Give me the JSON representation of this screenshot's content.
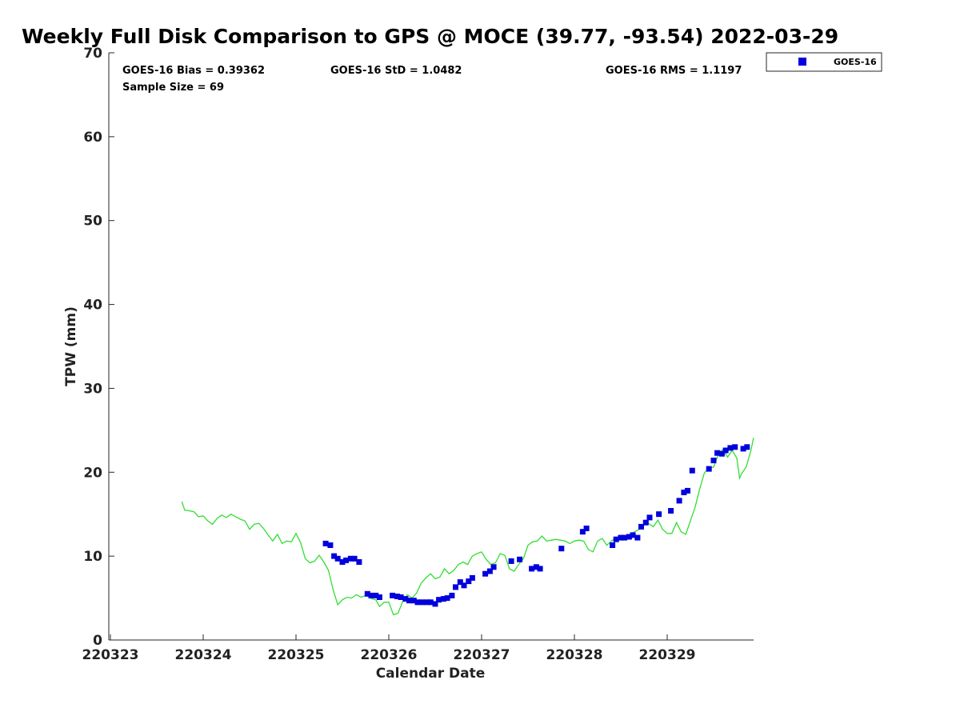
{
  "chart_data": {
    "type": "scatter",
    "title": "Weekly Full Disk Comparison to GPS @ MOCE (39.77, -93.54) 2022-03-29",
    "xlabel": "Calendar Date",
    "ylabel": "TPW (mm)",
    "xlim": [
      0,
      7
    ],
    "ylim": [
      0,
      70
    ],
    "x_tick_labels": [
      "220323",
      "220324",
      "220325",
      "220326",
      "220327",
      "220328",
      "220329"
    ],
    "y_ticks": [
      0,
      10,
      20,
      30,
      40,
      50,
      60,
      70
    ],
    "stats": {
      "bias": "GOES-16 Bias = 0.39362",
      "std": "GOES-16 StD = 1.0482",
      "rms": "GOES-16 RMS = 1.1197",
      "sample": "Sample Size = 69"
    },
    "legend": {
      "position": "top-right",
      "entries": [
        "GOES-16"
      ]
    },
    "colors": {
      "goes16": "#0000dd",
      "gps": "#33dd33"
    },
    "series": [
      {
        "name": "GOES-16",
        "kind": "markers",
        "x": [
          2.32,
          2.37,
          2.41,
          2.45,
          2.5,
          2.54,
          2.59,
          2.63,
          2.68,
          2.77,
          2.81,
          2.86,
          2.9,
          3.04,
          3.09,
          3.13,
          3.18,
          3.22,
          3.27,
          3.31,
          3.36,
          3.41,
          3.45,
          3.5,
          3.54,
          3.59,
          3.63,
          3.68,
          3.72,
          3.77,
          3.81,
          3.86,
          3.9,
          4.04,
          4.09,
          4.13,
          4.32,
          4.41,
          4.54,
          4.59,
          4.63,
          4.86,
          5.09,
          5.13,
          5.41,
          5.45,
          5.5,
          5.54,
          5.59,
          5.63,
          5.68,
          5.72,
          5.77,
          5.81,
          5.91,
          6.04,
          6.13,
          6.18,
          6.22,
          6.27,
          6.45,
          6.5,
          6.54,
          6.59,
          6.63,
          6.68,
          6.73,
          6.82,
          6.86
        ],
        "y": [
          11.5,
          11.3,
          10.0,
          9.7,
          9.3,
          9.5,
          9.7,
          9.7,
          9.3,
          5.5,
          5.3,
          5.3,
          5.1,
          5.3,
          5.2,
          5.1,
          4.9,
          4.7,
          4.7,
          4.5,
          4.5,
          4.5,
          4.5,
          4.3,
          4.8,
          4.9,
          5.0,
          5.3,
          6.3,
          6.9,
          6.5,
          7.0,
          7.4,
          7.9,
          8.2,
          8.7,
          9.4,
          9.6,
          8.5,
          8.7,
          8.5,
          10.9,
          12.9,
          13.3,
          11.3,
          12.0,
          12.2,
          12.2,
          12.3,
          12.5,
          12.2,
          13.5,
          14.0,
          14.6,
          15.0,
          15.4,
          16.6,
          17.6,
          17.8,
          20.2,
          20.4,
          21.4,
          22.3,
          22.2,
          22.6,
          22.9,
          23.0,
          22.8,
          23.0
        ]
      },
      {
        "name": "GPS",
        "kind": "line",
        "x": [
          0.77,
          0.8,
          0.85,
          0.9,
          0.95,
          1.0,
          1.05,
          1.1,
          1.15,
          1.2,
          1.25,
          1.3,
          1.35,
          1.4,
          1.45,
          1.5,
          1.55,
          1.6,
          1.65,
          1.7,
          1.75,
          1.8,
          1.85,
          1.9,
          1.95,
          2.0,
          2.05,
          2.1,
          2.15,
          2.2,
          2.25,
          2.3,
          2.35,
          2.4,
          2.45,
          2.5,
          2.55,
          2.6,
          2.65,
          2.7,
          2.75,
          2.78,
          2.82,
          2.86,
          2.9,
          2.95,
          3.0,
          3.05,
          3.1,
          3.15,
          3.2,
          3.25,
          3.3,
          3.35,
          3.4,
          3.45,
          3.5,
          3.55,
          3.6,
          3.65,
          3.7,
          3.75,
          3.8,
          3.85,
          3.9,
          3.95,
          4.0,
          4.05,
          4.1,
          4.15,
          4.2,
          4.25,
          4.3,
          4.35,
          4.4,
          4.45,
          4.5,
          4.55,
          4.6,
          4.65,
          4.7,
          4.75,
          4.8,
          4.85,
          4.9,
          4.95,
          5.0,
          5.05,
          5.1,
          5.15,
          5.2,
          5.25,
          5.3,
          5.35,
          5.4,
          5.45,
          5.5,
          5.55,
          5.6,
          5.65,
          5.7,
          5.75,
          5.8,
          5.85,
          5.9,
          5.95,
          6.0,
          6.05,
          6.1,
          6.15,
          6.2,
          6.25,
          6.3,
          6.35,
          6.4,
          6.45,
          6.5,
          6.55,
          6.6,
          6.65,
          6.7,
          6.75,
          6.78,
          6.8,
          6.85,
          6.9,
          6.93
        ],
        "y": [
          16.5,
          15.5,
          15.4,
          15.3,
          14.7,
          14.8,
          14.2,
          13.8,
          14.5,
          14.9,
          14.6,
          15.0,
          14.7,
          14.4,
          14.2,
          13.2,
          13.8,
          13.9,
          13.3,
          12.5,
          11.8,
          12.6,
          11.5,
          11.8,
          11.7,
          12.7,
          11.6,
          9.7,
          9.2,
          9.4,
          10.1,
          9.3,
          8.3,
          6.0,
          4.2,
          4.8,
          5.1,
          5.0,
          5.4,
          5.1,
          5.3,
          5.2,
          4.9,
          4.8,
          4.0,
          4.5,
          4.5,
          3.0,
          3.2,
          4.6,
          5.4,
          5.0,
          5.6,
          6.8,
          7.4,
          7.9,
          7.3,
          7.5,
          8.5,
          7.9,
          8.3,
          9.0,
          9.3,
          9.0,
          10.0,
          10.3,
          10.5,
          9.6,
          9.0,
          9.2,
          10.3,
          10.1,
          8.5,
          8.2,
          9.0,
          9.7,
          11.3,
          11.7,
          11.8,
          12.4,
          11.8,
          11.9,
          12.0,
          11.9,
          11.8,
          11.5,
          11.8,
          11.9,
          11.8,
          10.8,
          10.5,
          11.8,
          12.1,
          11.3,
          11.8,
          12.2,
          12.3,
          12.0,
          12.6,
          12.9,
          13.2,
          13.7,
          13.9,
          13.5,
          14.3,
          13.2,
          12.7,
          12.7,
          14.0,
          12.9,
          12.6,
          14.2,
          15.8,
          18.0,
          19.9,
          20.5,
          20.6,
          22.1,
          22.7,
          21.8,
          22.6,
          21.7,
          19.3,
          19.8,
          20.6,
          22.5,
          24.1
        ]
      }
    ]
  }
}
